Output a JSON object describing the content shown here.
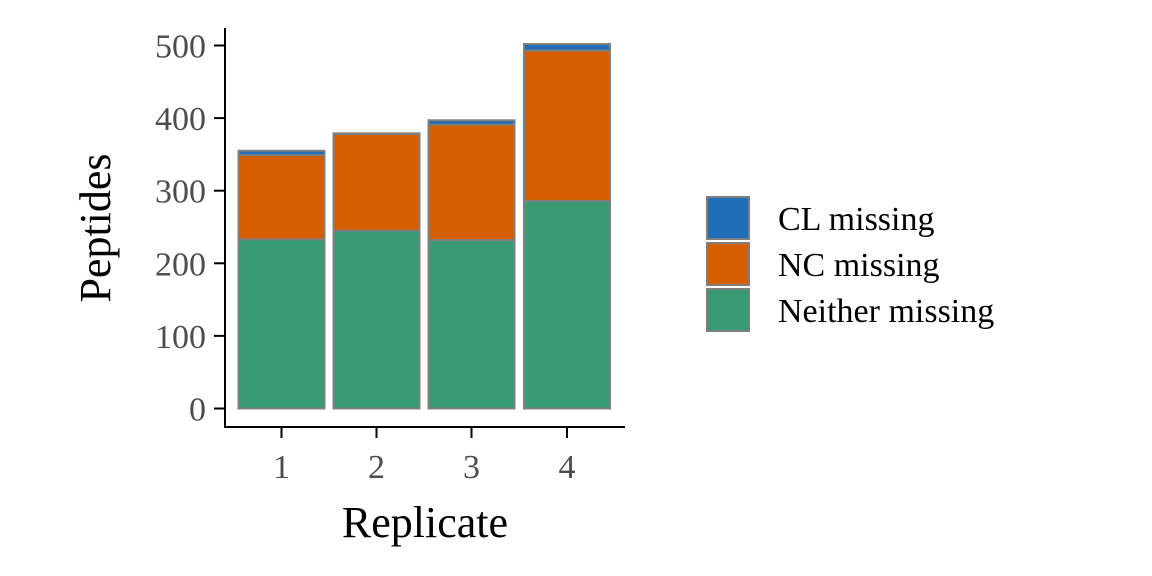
{
  "chart_data": {
    "type": "bar",
    "stacked": true,
    "categories": [
      "1",
      "2",
      "3",
      "4"
    ],
    "series": [
      {
        "name": "Neither missing",
        "values": [
          233,
          245,
          232,
          286
        ],
        "color": "#389B74"
      },
      {
        "name": "NC missing",
        "values": [
          116,
          133,
          159,
          207
        ],
        "color": "#D55E00"
      },
      {
        "name": "CL missing",
        "values": [
          6,
          1,
          6,
          9
        ],
        "color": "#1F6EB7"
      }
    ],
    "legend_order": [
      "CL missing",
      "NC missing",
      "Neither missing"
    ],
    "xlabel": "Replicate",
    "ylabel": "Peptides",
    "ylim": [
      0,
      520
    ],
    "yticks": [
      0,
      100,
      200,
      300,
      400,
      500
    ],
    "grid": false,
    "legend_position": "right",
    "bar_outline_color": "#7f7f7f"
  }
}
